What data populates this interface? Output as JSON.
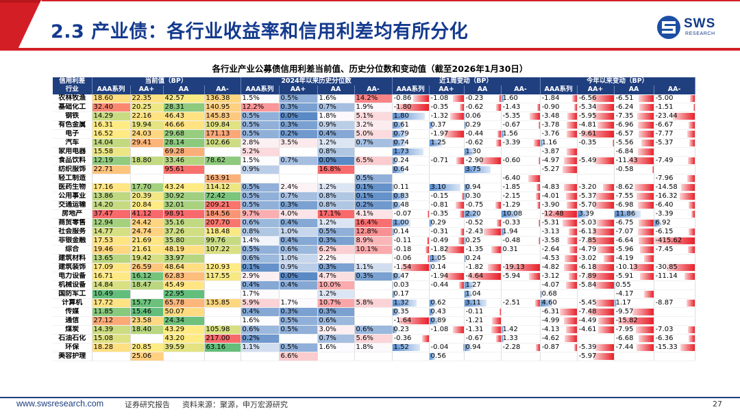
{
  "header": {
    "title": "2.3 产业债：各行业收益率和信用利差均有所分化"
  },
  "logo": {
    "name": "SWS",
    "sub": "RESEARCH"
  },
  "table": {
    "caption": "各行业产业公募债信用利差当前值、历史分位数和变动值（截至2026年1月30日）",
    "group_headers": [
      "信用利差",
      "当前值（BP）",
      "2024年以来历史分位数",
      "近1周变动（BP）",
      "今年以来变动（BP）"
    ],
    "industry_header": "行业",
    "sub_headers": [
      "AAA系列",
      "AA+",
      "AA",
      "AA-"
    ],
    "rows": [
      [
        "农林牧渔",
        "18.60",
        "22.35",
        "42.57",
        "136.38",
        "1.5%",
        "0.5%",
        "1.6%",
        "14.2%",
        "-0.86",
        "-1.08",
        "-0.23",
        "1.60",
        "-1.84",
        "-6.56",
        "-6.51",
        "-5.00"
      ],
      [
        "基础化工",
        "32.40",
        "20.25",
        "28.31",
        "140.95",
        "12.2%",
        "0.3%",
        "0.7%",
        "1.9%",
        "-1.80",
        "-0.35",
        "-0.62",
        "-1.43",
        "-0.90",
        "-5.34",
        "-6.24",
        "-1.51"
      ],
      [
        "钢铁",
        "14.29",
        "22.16",
        "46.43",
        "145.83",
        "0.5%",
        "0.0%",
        "1.8%",
        "5.1%",
        "1.80",
        "-1.32",
        "0.06",
        "-5.35",
        "-3.48",
        "-5.95",
        "-7.35",
        "-23.44"
      ],
      [
        "有色金属",
        "16.31",
        "19.94",
        "46.66",
        "109.84",
        "0.5%",
        "0.3%",
        "0.9%",
        "3.2%",
        "0.61",
        "0.37",
        "0.29",
        "-0.67",
        "-3.78",
        "-4.81",
        "-6.96",
        "-6.67"
      ],
      [
        "电子",
        "16.52",
        "24.03",
        "29.68",
        "171.13",
        "0.5%",
        "0.2%",
        "0.4%",
        "5.0%",
        "0.79",
        "-1.97",
        "-0.44",
        "1.56",
        "-3.76",
        "-9.61",
        "-6.57",
        "-7.77"
      ],
      [
        "汽车",
        "14.04",
        "29.41",
        "28.14",
        "102.66",
        "2.8%",
        "3.5%",
        "1.2%",
        "0.7%",
        "0.74",
        "1.25",
        "-0.62",
        "-3.39",
        "1.16",
        "-0.35",
        "-5.56",
        "-5.37"
      ],
      [
        "家用电器",
        "15.58",
        "",
        "69.28",
        "",
        "5.2%",
        "",
        "0.8%",
        "",
        "1.73",
        "",
        "1.30",
        "",
        "-3.87",
        "",
        "-6.84",
        ""
      ],
      [
        "食品饮料",
        "12.19",
        "18.80",
        "33.46",
        "78.62",
        "1.5%",
        "0.7%",
        "0.0%",
        "6.5%",
        "0.24",
        "-0.71",
        "-2.90",
        "-0.60",
        "-4.97",
        "-5.49",
        "-11.43",
        "-7.49"
      ],
      [
        "纺织服饰",
        "22.71",
        "",
        "95.61",
        "",
        "0.9%",
        "",
        "16.8%",
        "",
        "0.64",
        "",
        "3.75",
        "",
        "-5.27",
        "",
        "-0.58",
        ""
      ],
      [
        "轻工制造",
        "",
        "",
        "",
        "163.91",
        "",
        "",
        "",
        "0.5%",
        "",
        "",
        "",
        "-6.40",
        "",
        "",
        "",
        "-7.96"
      ],
      [
        "医药生物",
        "17.16",
        "17.70",
        "43.24",
        "114.12",
        "0.5%",
        "2.4%",
        "1.2%",
        "0.1%",
        "0.11",
        "3.10",
        "0.94",
        "-1.85",
        "-4.83",
        "-3.20",
        "-8.62",
        "-14.58"
      ],
      [
        "公用事业",
        "13.86",
        "20.39",
        "30.92",
        "72.42",
        "0.5%",
        "0.7%",
        "0.8%",
        "0.1%",
        "0.83",
        "-0.15",
        "0.30",
        "-2.15",
        "-4.01",
        "-5.37",
        "-7.55",
        "-16.32"
      ],
      [
        "交通运输",
        "14.20",
        "20.84",
        "32.01",
        "209.21",
        "0.5%",
        "0.3%",
        "0.8%",
        "0.2%",
        "0.48",
        "-0.81",
        "-0.75",
        "-1.29",
        "-3.90",
        "-5.70",
        "-6.98",
        "-6.40"
      ],
      [
        "房地产",
        "37.47",
        "41.12",
        "98.91",
        "184.56",
        "9.7%",
        "4.0%",
        "17.1%",
        "4.1%",
        "-0.07",
        "-0.35",
        "2.20",
        "10.08",
        "-12.48",
        "3.39",
        "11.86",
        "-3.39"
      ],
      [
        "商贸零售",
        "12.94",
        "24.42",
        "35.16",
        "207.70",
        "0.6%",
        "0.4%",
        "1.2%",
        "16.4%",
        "1.00",
        "0.29",
        "-0.52",
        "-0.33",
        "-5.31",
        "-5.03",
        "-6.75",
        "6.92"
      ],
      [
        "社会服务",
        "14.77",
        "24.74",
        "37.26",
        "118.48",
        "0.8%",
        "1.0%",
        "0.5%",
        "12.8%",
        "0.14",
        "-0.31",
        "-2.43",
        "1.94",
        "-3.13",
        "-6.13",
        "-7.07",
        "-6.15"
      ],
      [
        "非银金融",
        "17.53",
        "21.69",
        "35.80",
        "99.76",
        "1.4%",
        "0.4%",
        "0.3%",
        "8.9%",
        "-0.11",
        "-0.49",
        "0.25",
        "-0.48",
        "-3.58",
        "-7.85",
        "-6.64",
        "-415.62"
      ],
      [
        "综合",
        "19.46",
        "21.61",
        "48.19",
        "107.22",
        "0.5%",
        "0.6%",
        "6.2%",
        "10.1%",
        "-0.18",
        "-1.82",
        "-1.35",
        "0.31",
        "-2.64",
        "-4.79",
        "-5.96",
        "-7.45"
      ],
      [
        "建筑材料",
        "13.65",
        "19.42",
        "33.97",
        "",
        "0.6%",
        "1.0%",
        "2.2%",
        "",
        "-0.06",
        "1.05",
        "0.24",
        "",
        "-4.53",
        "-3.02",
        "-4.19",
        ""
      ],
      [
        "建筑装饰",
        "17.09",
        "26.59",
        "48.64",
        "120.93",
        "0.1%",
        "0.9%",
        "0.3%",
        "1.1%",
        "-1.54",
        "0.14",
        "-1.82",
        "-19.13",
        "-4.82",
        "-6.18",
        "-10.13",
        "-30.85"
      ],
      [
        "电力设备",
        "16.71",
        "16.12",
        "62.83",
        "117.55",
        "2.9%",
        "0.0%",
        "4.7%",
        "0.3%",
        "0.47",
        "-1.94",
        "-4.64",
        "-5.94",
        "-3.12",
        "-7.89",
        "-5.91",
        "-11.14"
      ],
      [
        "机械设备",
        "14.84",
        "18.47",
        "45.49",
        "",
        "0.4%",
        "0.4%",
        "10.0%",
        "",
        "0.03",
        "-0.44",
        "1.27",
        "",
        "-4.07",
        "-5.84",
        "0.55",
        ""
      ],
      [
        "国防军工",
        "10.49",
        "",
        "22.95",
        "",
        "1.7%",
        "",
        "1.2%",
        "",
        "0.17",
        "",
        "1.04",
        "",
        "0.68",
        "",
        "-4.17",
        ""
      ],
      [
        "计算机",
        "17.72",
        "15.77",
        "65.78",
        "135.85",
        "5.9%",
        "1.7%",
        "10.7%",
        "5.8%",
        "1.32",
        "0.62",
        "3.11",
        "-2.51",
        "4.60",
        "-5.45",
        "1.17",
        "-8.87"
      ],
      [
        "传媒",
        "11.85",
        "15.46",
        "50.07",
        "",
        "0.4%",
        "0.3%",
        "0.3%",
        "",
        "0.35",
        "0.43",
        "-0.11",
        "",
        "-6.31",
        "-7.48",
        "-9.57",
        ""
      ],
      [
        "通信",
        "27.12",
        "23.58",
        "24.34",
        "",
        "1.6%",
        "0.5%",
        "0.6%",
        "",
        "-1.64",
        "0.89",
        "-1.21",
        "",
        "-4.99",
        "-4.49",
        "-15.82",
        ""
      ],
      [
        "煤炭",
        "14.39",
        "18.40",
        "43.29",
        "105.98",
        "0.6%",
        "0.5%",
        "3.0%",
        "0.6%",
        "0.23",
        "-1.08",
        "-1.31",
        "1.42",
        "-4.13",
        "-4.61",
        "-7.95",
        "-7.03"
      ],
      [
        "石油石化",
        "15.08",
        "",
        "43.20",
        "217.00",
        "0.2%",
        "",
        "0.7%",
        "5.6%",
        "-0.36",
        "",
        "-0.67",
        "1.33",
        "-4.62",
        "",
        "-6.68",
        "-6.36"
      ],
      [
        "环保",
        "18.28",
        "20.85",
        "39.59",
        "63.16",
        "1.1%",
        "0.5%",
        "1.6%",
        "1.8%",
        "1.52",
        "-0.04",
        "0.94",
        "-2.28",
        "-0.87",
        "-5.39",
        "-7.44",
        "-15.33"
      ],
      [
        "美容护理",
        "",
        "25.06",
        "",
        "",
        "",
        "6.6%",
        "",
        "",
        "",
        "0.56",
        "",
        "",
        "",
        "-5.97",
        "",
        ""
      ]
    ]
  },
  "footer": {
    "site": "www.swsresearch.com",
    "report": "证券研究报告",
    "source": "资料来源：聚源，申万宏源研究",
    "page": "27"
  }
}
